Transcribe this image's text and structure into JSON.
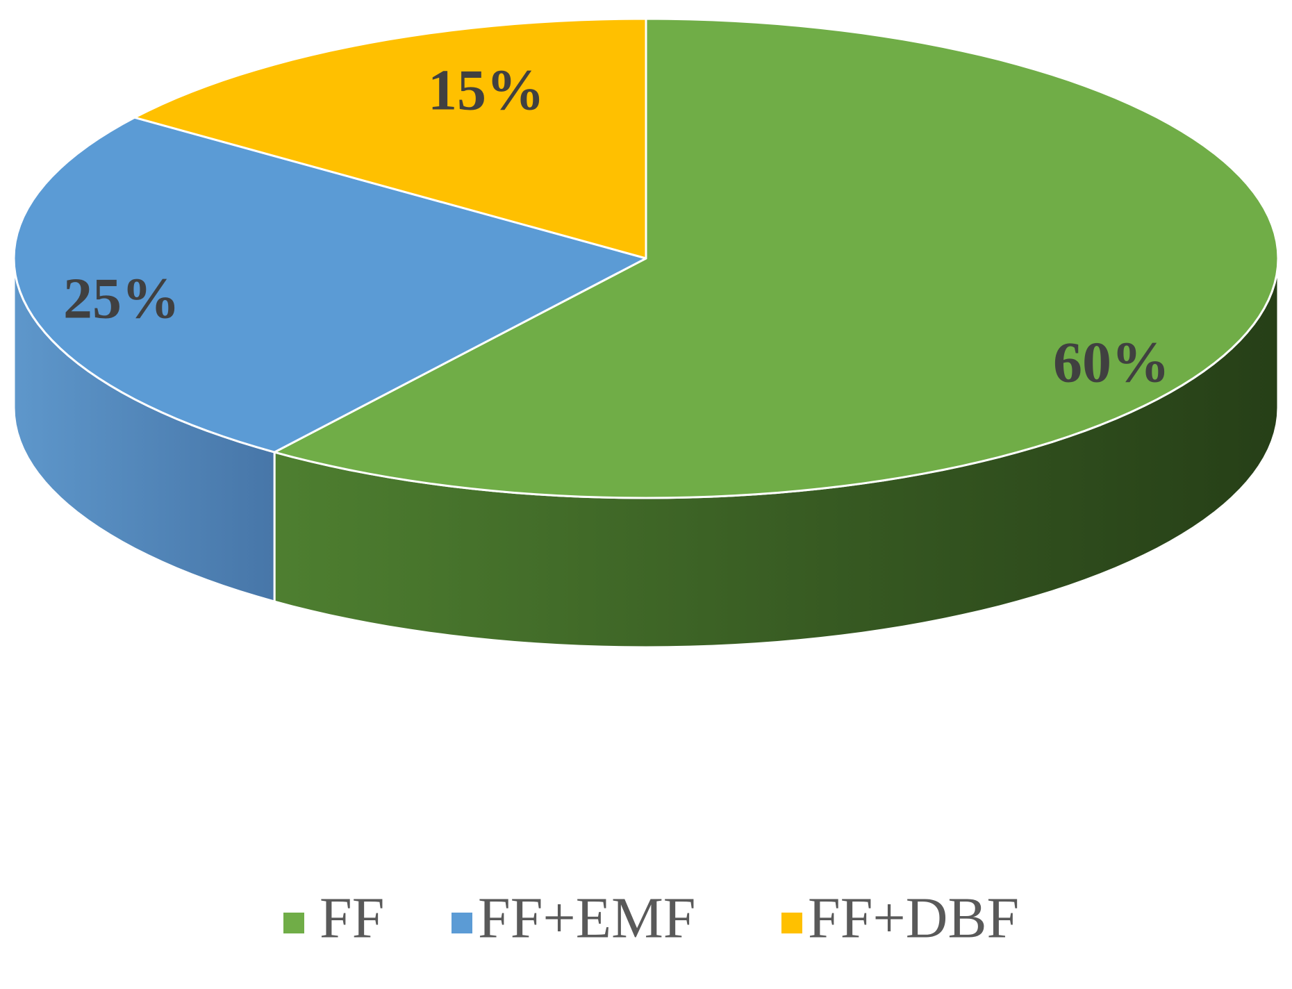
{
  "chart_data": {
    "type": "pie",
    "title": "",
    "categories": [
      "FF",
      "FF+EMF",
      "FF+DBF"
    ],
    "values": [
      60,
      25,
      15
    ],
    "data_labels": [
      "60%",
      "25%",
      "15%"
    ],
    "colors": {
      "FF": "#70AD47",
      "FF+EMF": "#5B9BD5",
      "FF+DBF": "#FFC000"
    },
    "side_colors": {
      "FF": [
        "#4A7A2E",
        "#2A4519"
      ],
      "FF+EMF": [
        "#5A93C6",
        "#4B7DB0"
      ]
    },
    "style": "3d-pie",
    "legend_position": "bottom"
  },
  "legend": {
    "items": [
      {
        "label": "FF",
        "color": "#70AD47"
      },
      {
        "label": "FF+EMF",
        "color": "#5B9BD5"
      },
      {
        "label": "FF+DBF",
        "color": "#FFC000"
      }
    ]
  }
}
